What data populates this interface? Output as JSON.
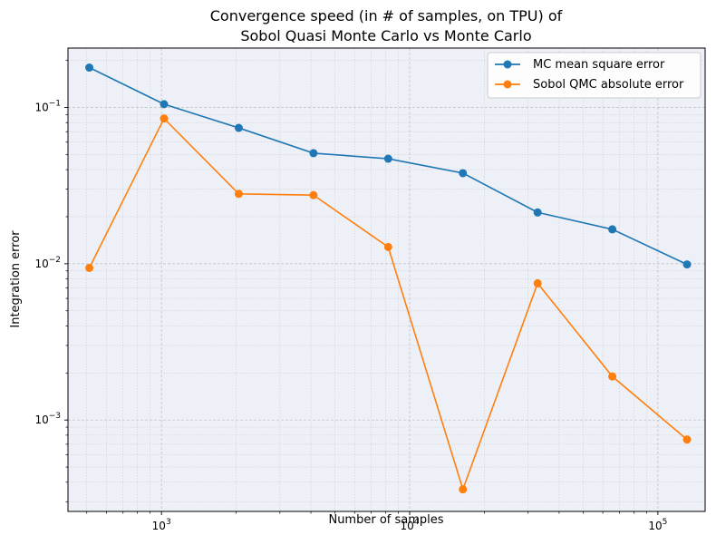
{
  "chart_data": {
    "type": "line",
    "title_line1": "Convergence speed (in # of samples, on TPU) of",
    "title_line2": "Sobol Quasi Monte Carlo vs Monte Carlo",
    "xlabel": "Number of samples",
    "ylabel": "Integration error",
    "x_scale": "log",
    "y_scale": "log",
    "xlim": [
      420,
      155000
    ],
    "ylim": [
      0.00026,
      0.24
    ],
    "grid": true,
    "legend_position": "top-right",
    "x": [
      512,
      1024,
      2048,
      4096,
      8192,
      16384,
      32768,
      65536,
      131072
    ],
    "x_ticks": [
      {
        "value": 1000,
        "base": "10",
        "exp": "3"
      },
      {
        "value": 10000,
        "base": "10",
        "exp": "4"
      },
      {
        "value": 100000,
        "base": "10",
        "exp": "5"
      }
    ],
    "y_ticks": [
      {
        "value": 0.001,
        "base": "10",
        "exp": "−3"
      },
      {
        "value": 0.01,
        "base": "10",
        "exp": "−2"
      },
      {
        "value": 0.1,
        "base": "10",
        "exp": "−1"
      }
    ],
    "series": [
      {
        "name": "MC mean square error",
        "color": "#1f77b4",
        "values": [
          0.18,
          0.105,
          0.074,
          0.051,
          0.047,
          0.038,
          0.0213,
          0.0166,
          0.0099
        ]
      },
      {
        "name": "Sobol QMC absolute error",
        "color": "#ff7f0e",
        "values": [
          0.0094,
          0.085,
          0.028,
          0.0275,
          0.0128,
          0.00036,
          0.0075,
          0.0019,
          0.00075
        ]
      }
    ]
  }
}
